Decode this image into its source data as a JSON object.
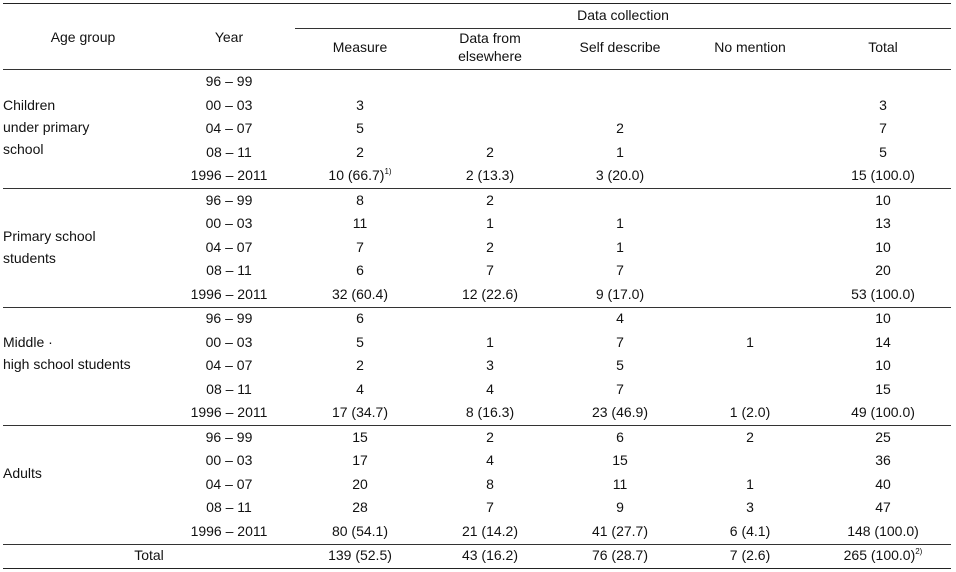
{
  "header": {
    "age_group": "Age group",
    "year": "Year",
    "data_collection": "Data collection",
    "columns": [
      "Measure",
      "Data from\nelsewhere",
      "Self describe",
      "No mention",
      "Total"
    ]
  },
  "groups": [
    {
      "label": "Children\n under primary\n school",
      "rows": [
        {
          "year": "96 – 99",
          "measure": "",
          "elsewhere": "",
          "self": "",
          "nomention": "",
          "total": ""
        },
        {
          "year": "00 – 03",
          "measure": "3",
          "elsewhere": "",
          "self": "",
          "nomention": "",
          "total": "3"
        },
        {
          "year": "04 – 07",
          "measure": "5",
          "elsewhere": "",
          "self": "2",
          "nomention": "",
          "total": "7"
        },
        {
          "year": "08 – 11",
          "measure": "2",
          "elsewhere": "2",
          "self": "1",
          "nomention": "",
          "total": "5"
        },
        {
          "year": "1996 – 2011",
          "measure": "10 (66.7)",
          "measure_sup": "1)",
          "elsewhere": "2 (13.3)",
          "self": "3 (20.0)",
          "nomention": "",
          "total": "15 (100.0)"
        }
      ]
    },
    {
      "label": "Primary school\n students",
      "rows": [
        {
          "year": "96 – 99",
          "measure": "8",
          "elsewhere": "2",
          "self": "",
          "nomention": "",
          "total": "10"
        },
        {
          "year": "00 – 03",
          "measure": "11",
          "elsewhere": "1",
          "self": "1",
          "nomention": "",
          "total": "13"
        },
        {
          "year": "04 – 07",
          "measure": "7",
          "elsewhere": "2",
          "self": "1",
          "nomention": "",
          "total": "10"
        },
        {
          "year": "08 – 11",
          "measure": "6",
          "elsewhere": "7",
          "self": "7",
          "nomention": "",
          "total": "20"
        },
        {
          "year": "1996 – 2011",
          "measure": "32 (60.4)",
          "elsewhere": "12 (22.6)",
          "self": "9 (17.0)",
          "nomention": "",
          "total": "53 (100.0)"
        }
      ]
    },
    {
      "label": "Middle ·\n high school students",
      "rows": [
        {
          "year": "96 – 99",
          "measure": "6",
          "elsewhere": "",
          "self": "4",
          "nomention": "",
          "total": "10"
        },
        {
          "year": "00 – 03",
          "measure": "5",
          "elsewhere": "1",
          "self": "7",
          "nomention": "1",
          "total": "14"
        },
        {
          "year": "04 – 07",
          "measure": "2",
          "elsewhere": "3",
          "self": "5",
          "nomention": "",
          "total": "10"
        },
        {
          "year": "08 – 11",
          "measure": "4",
          "elsewhere": "4",
          "self": "7",
          "nomention": "",
          "total": "15"
        },
        {
          "year": "1996 – 2011",
          "measure": "17 (34.7)",
          "elsewhere": "8 (16.3)",
          "self": "23 (46.9)",
          "nomention": "1 (2.0)",
          "total": "49 (100.0)"
        }
      ]
    },
    {
      "label": "Adults",
      "rows": [
        {
          "year": "96 – 99",
          "measure": "15",
          "elsewhere": "2",
          "self": "6",
          "nomention": "2",
          "total": "25"
        },
        {
          "year": "00 – 03",
          "measure": "17",
          "elsewhere": "4",
          "self": "15",
          "nomention": "",
          "total": "36"
        },
        {
          "year": "04 – 07",
          "measure": "20",
          "elsewhere": "8",
          "self": "11",
          "nomention": "1",
          "total": "40"
        },
        {
          "year": "08 – 11",
          "measure": "28",
          "elsewhere": "7",
          "self": "9",
          "nomention": "3",
          "total": "47"
        },
        {
          "year": "1996 – 2011",
          "measure": "80 (54.1)",
          "elsewhere": "21 (14.2)",
          "self": "41 (27.7)",
          "nomention": "6 (4.1)",
          "total": "148 (100.0)"
        }
      ]
    }
  ],
  "total_row": {
    "label": "Total",
    "measure": "139 (52.5)",
    "elsewhere": "43 (16.2)",
    "self": "76 (28.7)",
    "nomention": "7 (2.6)",
    "total": "265 (100.0)",
    "total_sup": "2)"
  }
}
